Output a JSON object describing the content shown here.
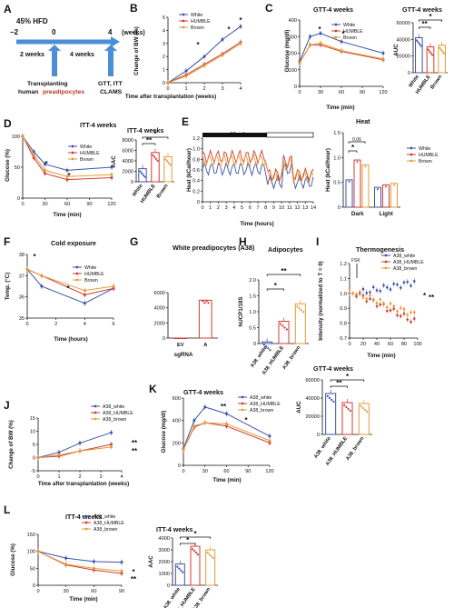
{
  "colors": {
    "white": "#3d54a8",
    "humble": "#d13b33",
    "brown": "#e59b3a",
    "blue_arrow": "#4a8fd6",
    "red_text": "#c0302a"
  },
  "A": {
    "label": "A",
    "diet": "45% HFD",
    "weeks_unit": "(weeks)",
    "timeline": [
      "−2",
      "0",
      "4"
    ],
    "seg1": "2 weeks",
    "seg2": "4 weeks",
    "transplant": "Transplanting",
    "human": "human",
    "preadipocytes": "preadipocytes",
    "assays1": "GTT, ITT",
    "assays2": "CLAMS"
  },
  "chart_data": [
    {
      "id": "B",
      "type": "line",
      "label": "B",
      "xlabel": "Time after transplantation (weeks)",
      "ylabel": "Change of BW (%)",
      "x": [
        0,
        1,
        2,
        3,
        4
      ],
      "ylim": [
        0,
        5
      ],
      "xticks": [
        "0",
        "1",
        "2",
        "3",
        "4"
      ],
      "yticks": [
        "0",
        "1",
        "2",
        "3",
        "4",
        "5"
      ],
      "series": [
        {
          "name": "White",
          "color": "#3d54a8",
          "values": [
            0,
            0.9,
            2.0,
            3.3,
            4.3
          ]
        },
        {
          "name": "HUMBLE",
          "color": "#d13b33",
          "values": [
            0,
            0.6,
            1.4,
            2.2,
            3.1
          ]
        },
        {
          "name": "Brown",
          "color": "#e59b3a",
          "values": [
            0,
            0.5,
            1.3,
            2.1,
            3.0
          ]
        }
      ],
      "marks": [
        "*",
        "*",
        "*"
      ]
    },
    {
      "id": "C",
      "type": "line",
      "label": "C",
      "title": "GTT-4 weeks",
      "xlabel": "Time (min)",
      "ylabel": "Glucose (mg/dl)",
      "x": [
        0,
        15,
        30,
        60,
        120
      ],
      "ylim": [
        0,
        400
      ],
      "xticks": [
        "0",
        "30",
        "60",
        "90",
        "120"
      ],
      "yticks": [
        "0",
        "100",
        "200",
        "300",
        "400"
      ],
      "series": [
        {
          "name": "White",
          "color": "#3d54a8",
          "values": [
            150,
            300,
            320,
            270,
            200
          ]
        },
        {
          "name": "HUMBLE",
          "color": "#d13b33",
          "values": [
            140,
            250,
            250,
            210,
            160
          ]
        },
        {
          "name": "Brown",
          "color": "#e59b3a",
          "values": [
            140,
            250,
            260,
            215,
            165
          ]
        }
      ],
      "marks": [
        "*",
        "*"
      ]
    },
    {
      "id": "C_bar",
      "type": "bar",
      "title": "GTT-4 weeks",
      "ylabel": "AUC",
      "categories": [
        "White",
        "HUMBLE",
        "Brown"
      ],
      "values": [
        42000,
        31000,
        33000
      ],
      "ylim": [
        0,
        60000
      ],
      "yticks": [
        "0",
        "20000",
        "40000",
        "60000"
      ],
      "marks": [
        "**",
        "*"
      ]
    },
    {
      "id": "D",
      "type": "line",
      "label": "D",
      "title": "ITT-4 weeks",
      "xlabel": "Time (min)",
      "ylabel": "Glucose (%)",
      "x": [
        0,
        15,
        30,
        60,
        120
      ],
      "ylim": [
        0,
        100
      ],
      "xticks": [
        "0",
        "30",
        "60",
        "90",
        "120"
      ],
      "yticks": [
        "0",
        "50",
        "100"
      ],
      "series": [
        {
          "name": "White",
          "color": "#3d54a8",
          "values": [
            100,
            75,
            55,
            45,
            50
          ]
        },
        {
          "name": "HUMBLE",
          "color": "#d13b33",
          "values": [
            100,
            65,
            40,
            30,
            33
          ]
        },
        {
          "name": "Brown",
          "color": "#e59b3a",
          "values": [
            100,
            70,
            45,
            35,
            38
          ]
        }
      ],
      "marks": [
        "*",
        "*"
      ]
    },
    {
      "id": "D_bar",
      "type": "bar",
      "title": "ITT-4 weeks",
      "ylabel": "AAC",
      "categories": [
        "White",
        "HUMBLE",
        "Brown"
      ],
      "values": [
        2500,
        5600,
        4800
      ],
      "ylim": [
        0,
        8000
      ],
      "yticks": [
        "0",
        "2000",
        "4000",
        "6000",
        "8000"
      ],
      "marks": [
        "**",
        "*"
      ]
    },
    {
      "id": "E",
      "type": "line",
      "label": "E",
      "title": "Heat",
      "xlabel": "Time (hours)",
      "ylabel": "Heat (kCal/hour)",
      "ylim": [
        0,
        1.2
      ],
      "xlim": [
        0,
        14
      ],
      "xticks": [
        "0",
        "1",
        "2",
        "3",
        "4",
        "5",
        "6",
        "7",
        "8",
        "9",
        "10",
        "11",
        "12",
        "13",
        "14"
      ],
      "yticks": [
        "0",
        "0.2",
        "0.4",
        "0.6",
        "0.8",
        "1.0",
        "1.2"
      ],
      "series": [
        {
          "name": "White",
          "color": "#3d54a8"
        },
        {
          "name": "HUMBLE",
          "color": "#d13b33"
        },
        {
          "name": "Brown",
          "color": "#e59b3a"
        }
      ]
    },
    {
      "id": "E_bar",
      "type": "bar",
      "title": "Heat",
      "ylabel": "Heat (kCal/hour)",
      "categories": [
        "Dark",
        "Light"
      ],
      "series": [
        {
          "name": "White",
          "values": [
            0.55,
            0.4
          ]
        },
        {
          "name": "HUMBLE",
          "values": [
            0.95,
            0.45
          ]
        },
        {
          "name": "Brown",
          "values": [
            0.85,
            0.48
          ]
        }
      ],
      "ylim": [
        0,
        1.5
      ],
      "yticks": [
        "0",
        "0.5",
        "1.0",
        "1.5"
      ],
      "annot": "0.06",
      "marks": [
        "*"
      ]
    },
    {
      "id": "F",
      "type": "line",
      "label": "F",
      "title": "Cold exposure",
      "xlabel": "Time (hours)",
      "ylabel": "Temp. (°C)",
      "x": [
        0,
        1,
        4,
        6
      ],
      "ylim": [
        35,
        38
      ],
      "xticks": [
        "0",
        "2",
        "4",
        "6"
      ],
      "yticks": [
        "35",
        "36",
        "37",
        "38"
      ],
      "series": [
        {
          "name": "White",
          "color": "#3d54a8",
          "values": [
            37.3,
            36.5,
            35.7,
            36.4
          ]
        },
        {
          "name": "HUMBLE",
          "color": "#d13b33",
          "values": [
            37.3,
            37.0,
            36.1,
            36.4
          ]
        },
        {
          "name": "Brown",
          "color": "#e59b3a",
          "values": [
            37.3,
            37.0,
            36.3,
            36.5
          ]
        }
      ],
      "marks": [
        "*",
        "*"
      ]
    },
    {
      "id": "G",
      "type": "bar",
      "label": "G",
      "title": "White preadipocytes (A38)",
      "xlabel": "sgRNA",
      "categories": [
        "EV",
        "A"
      ],
      "values": [
        0,
        5000
      ],
      "ylim": [
        0,
        6000
      ],
      "yticks": [
        "0",
        "2000",
        "4000",
        "6000"
      ]
    },
    {
      "id": "H",
      "type": "bar",
      "label": "H",
      "title": "Adipocytes",
      "ylabel": "hUCP1/18S",
      "categories": [
        "A38_white",
        "A38_HUMBLE",
        "A38_brown"
      ],
      "values": [
        0.05,
        0.7,
        1.25
      ],
      "ylim": [
        0,
        2.0
      ],
      "yticks": [
        "0",
        "0.5",
        "1.0",
        "1.5",
        "2.0"
      ],
      "marks": [
        "*",
        "**"
      ]
    },
    {
      "id": "I",
      "type": "scatter",
      "label": "I",
      "title": "Thermogenesis",
      "xlabel": "Time (min)",
      "ylabel": "Intensity (normalized to T = 0)",
      "ylim": [
        0.7,
        1.2
      ],
      "xlim": [
        0,
        100
      ],
      "xticks": [
        "0",
        "20",
        "40",
        "60",
        "80",
        "100"
      ],
      "yticks": [
        "0.7",
        "0.8",
        "0.9",
        "1.0",
        "1.1",
        "1.2"
      ],
      "annot": "FSK",
      "series": [
        {
          "name": "A38_white",
          "color": "#3d54a8"
        },
        {
          "name": "A38_HUMBLE",
          "color": "#d13b33"
        },
        {
          "name": "A38_brown",
          "color": "#e59b3a"
        }
      ],
      "marks": [
        "*",
        "**"
      ]
    },
    {
      "id": "J",
      "type": "line",
      "label": "J",
      "xlabel": "Time after transplantation (weeks)",
      "ylabel": "Change of BW (%)",
      "x": [
        0,
        1,
        2,
        3.5
      ],
      "ylim": [
        -5,
        15
      ],
      "xticks": [
        "0",
        "1",
        "2",
        "3",
        "4"
      ],
      "yticks": [
        "-5",
        "0",
        "5",
        "10",
        "15"
      ],
      "series": [
        {
          "name": "A38_white",
          "color": "#3d54a8",
          "values": [
            0,
            2,
            5.5,
            9.5
          ]
        },
        {
          "name": "A38_HUMBLE",
          "color": "#d13b33",
          "values": [
            0,
            0.5,
            2.5,
            5
          ]
        },
        {
          "name": "A38_brown",
          "color": "#e59b3a",
          "values": [
            0,
            1,
            2.5,
            4
          ]
        }
      ],
      "marks": [
        "**",
        "**"
      ]
    },
    {
      "id": "K",
      "type": "line",
      "label": "K",
      "title": "GTT-4 weeks",
      "xlabel": "Time (min)",
      "ylabel": "Glucose (mg/dl)",
      "x": [
        0,
        15,
        30,
        60,
        120
      ],
      "ylim": [
        0,
        600
      ],
      "xticks": [
        "0",
        "30",
        "60",
        "90",
        "120"
      ],
      "yticks": [
        "0",
        "200",
        "400",
        "600"
      ],
      "series": [
        {
          "name": "A38_white",
          "color": "#3d54a8",
          "values": [
            150,
            400,
            520,
            460,
            260
          ]
        },
        {
          "name": "A38_HUMBLE",
          "color": "#d13b33",
          "values": [
            140,
            340,
            380,
            350,
            200
          ]
        },
        {
          "name": "A38_brown",
          "color": "#e59b3a",
          "values": [
            140,
            350,
            380,
            370,
            220
          ]
        }
      ],
      "marks": [
        "**",
        "*"
      ]
    },
    {
      "id": "K_bar",
      "type": "bar",
      "title": "GTT-4 weeks",
      "ylabel": "AUC",
      "categories": [
        "A38_white",
        "A38_HUMBLE",
        "A38_brown"
      ],
      "values": [
        45000,
        35000,
        34000
      ],
      "ylim": [
        0,
        60000
      ],
      "yticks": [
        "0",
        "20000",
        "40000",
        "60000"
      ],
      "marks": [
        "**",
        "*"
      ]
    },
    {
      "id": "L",
      "type": "line",
      "label": "L",
      "title": "ITT-4 weeks",
      "xlabel": "Time (min)",
      "ylabel": "Glucose (%)",
      "x": [
        0,
        30,
        60,
        90
      ],
      "ylim": [
        0,
        150
      ],
      "xticks": [
        "0",
        "30",
        "60",
        "90"
      ],
      "yticks": [
        "0",
        "50",
        "100",
        "150"
      ],
      "series": [
        {
          "name": "A38_white",
          "color": "#3d54a8",
          "values": [
            100,
            80,
            70,
            68
          ]
        },
        {
          "name": "A38_HUMBLE",
          "color": "#d13b33",
          "values": [
            100,
            60,
            45,
            35
          ]
        },
        {
          "name": "A38_brown",
          "color": "#e59b3a",
          "values": [
            100,
            62,
            50,
            42
          ]
        }
      ],
      "marks": [
        "*",
        "**"
      ]
    },
    {
      "id": "L_bar",
      "type": "bar",
      "title": "ITT-4 weeks",
      "ylabel": "AAC",
      "categories": [
        "A38_white",
        "A38_HUMBLE",
        "A38_brown"
      ],
      "values": [
        1800,
        3300,
        3000
      ],
      "ylim": [
        0,
        4000
      ],
      "yticks": [
        "0",
        "1000",
        "2000",
        "3000",
        "4000"
      ],
      "marks": [
        "*",
        "*"
      ]
    }
  ]
}
